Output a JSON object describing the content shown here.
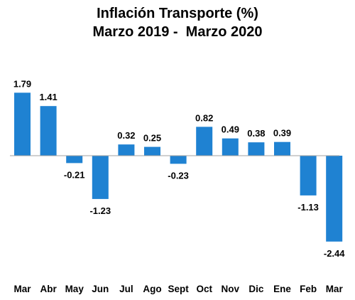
{
  "chart_data": {
    "type": "bar",
    "title": "Inflación Transporte (%)",
    "subtitle": "Marzo 2019 -  Marzo 2020",
    "xlabel": "",
    "ylabel": "",
    "categories": [
      "Mar",
      "Abr",
      "May",
      "Jun",
      "Jul",
      "Ago",
      "Sept",
      "Oct",
      "Nov",
      "Dic",
      "Ene",
      "Feb",
      "Mar"
    ],
    "values": [
      1.79,
      1.41,
      -0.21,
      -1.23,
      0.32,
      0.25,
      -0.23,
      0.82,
      0.49,
      0.38,
      0.39,
      -1.13,
      -2.44
    ],
    "value_labels": [
      "1.79",
      "1.41",
      "-0.21",
      "-1.23",
      "0.32",
      "0.25",
      "-0.23",
      "0.82",
      "0.49",
      "0.38",
      "0.39",
      "-1.13",
      "-2.44"
    ],
    "ylim": [
      -2.44,
      1.79
    ],
    "grid": false,
    "legend": "none",
    "colors": {
      "bar": "#1f82d2",
      "baseline": "#a0a0a0"
    }
  }
}
